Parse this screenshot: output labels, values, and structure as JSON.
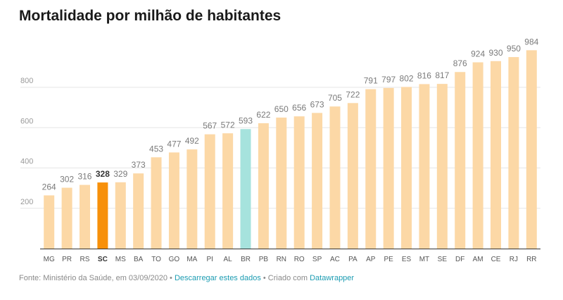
{
  "title": "Mortalidade por milhão de habitantes",
  "footer": {
    "source": "Fonte: Ministério da Saúde, em 03/09/2020",
    "sep1": " • ",
    "download_link": "Descarregar estes dados",
    "sep2": " • Criado com ",
    "datawrapper_link": "Datawrapper"
  },
  "colors": {
    "default_bar": "#fcd8a6",
    "highlight_sc": "#f7900a",
    "highlight_br": "#a6e3dd",
    "label": "#7a7a7a",
    "grid": "#e6e6e6",
    "axis": "#333333"
  },
  "chart_data": {
    "type": "bar",
    "categories": [
      "MG",
      "PR",
      "RS",
      "SC",
      "MS",
      "BA",
      "TO",
      "GO",
      "MA",
      "PI",
      "AL",
      "BR",
      "PB",
      "RN",
      "RO",
      "SP",
      "AC",
      "PA",
      "AP",
      "PE",
      "ES",
      "MT",
      "SE",
      "DF",
      "AM",
      "CE",
      "RJ",
      "RR"
    ],
    "values": [
      264,
      302,
      316,
      328,
      329,
      373,
      453,
      477,
      492,
      567,
      572,
      593,
      622,
      650,
      656,
      673,
      705,
      722,
      791,
      797,
      802,
      816,
      817,
      876,
      924,
      930,
      950,
      984
    ],
    "highlight": {
      "SC": "highlight_sc",
      "BR": "highlight_br"
    },
    "bold_labels": [
      "SC"
    ],
    "yticks": [
      200,
      400,
      600,
      800
    ],
    "ylim": [
      0,
      1000
    ],
    "grid": true,
    "legend": "none"
  }
}
